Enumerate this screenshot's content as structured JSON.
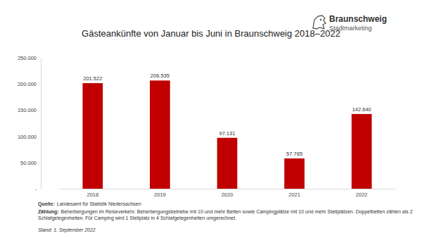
{
  "chart_data": {
    "type": "bar",
    "title": "Gästeankünfte von Januar bis Juni in Braunschweig 2018–2022",
    "categories": [
      "2018",
      "2019",
      "2020",
      "2021",
      "2022"
    ],
    "values": [
      201522,
      206535,
      97131,
      57785,
      142640
    ],
    "value_labels": [
      "201.522",
      "206.535",
      "97.131",
      "57.785",
      "142.640"
    ],
    "data_labels": true,
    "color": "#c00000",
    "ylim": [
      0,
      250000
    ],
    "yticks": [
      {
        "value": 0,
        "label": "-"
      },
      {
        "value": 50000,
        "label": "50.000"
      },
      {
        "value": 100000,
        "label": "100.000"
      },
      {
        "value": 150000,
        "label": "150.000"
      },
      {
        "value": 200000,
        "label": "200.000"
      },
      {
        "value": 250000,
        "label": "250.000"
      }
    ],
    "grid": false,
    "logo_text": [
      "Braunschweig",
      "Stadtmarketing"
    ],
    "annotations": [
      {
        "label": "Quelle:",
        "text": "Landesamt für Statistik Niedersachsen"
      },
      {
        "label": "Zählung:",
        "text": "Beherbergungen im Reiseverkehr. Beherbergungsbetriebe mit 10 und mehr Betten sowie Campingplätze mit 10 und mehr Stellplätzen. Doppelbetten zählen als 2 Schlafgelegenheiten. Für Camping wird 1 Stellplatz in 4 Schlafgelegenheiten umgerechnet."
      },
      {
        "text": "Stand: 1. September 2022"
      }
    ]
  }
}
